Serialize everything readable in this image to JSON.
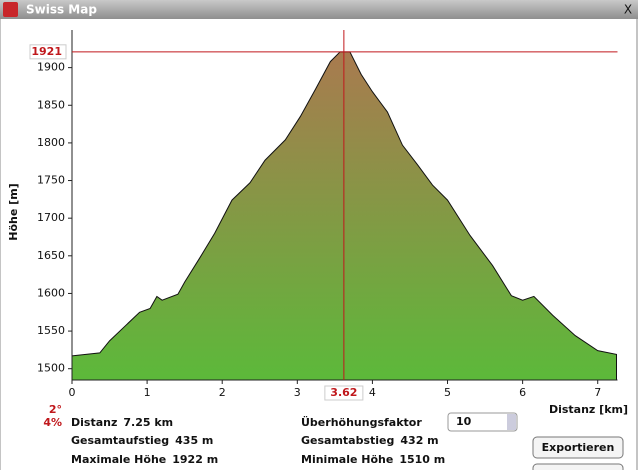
{
  "window": {
    "title": "Swiss Map",
    "close": "X"
  },
  "chart_data": {
    "type": "area",
    "y_label": "Höhe [m]",
    "x_label": "Distanz [km]",
    "x": [
      0,
      0.37,
      0.5,
      0.7,
      0.9,
      1.04,
      1.13,
      1.2,
      1.41,
      1.5,
      1.7,
      1.9,
      2.13,
      2.37,
      2.57,
      2.84,
      3.04,
      3.24,
      3.44,
      3.57,
      3.7,
      3.85,
      4.0,
      4.2,
      4.4,
      4.6,
      4.8,
      5.0,
      5.3,
      5.6,
      5.85,
      6.0,
      6.15,
      6.4,
      6.7,
      7.0,
      7.25
    ],
    "values": [
      1517,
      1521,
      1537,
      1556,
      1575,
      1580,
      1596,
      1591,
      1599,
      1615,
      1647,
      1680,
      1724,
      1747,
      1777,
      1804,
      1835,
      1871,
      1908,
      1921,
      1921,
      1891,
      1868,
      1841,
      1797,
      1771,
      1744,
      1724,
      1677,
      1637,
      1597,
      1591,
      1596,
      1571,
      1544,
      1524,
      1519
    ],
    "fill_top": "#a97a4f",
    "fill_bottom": "#5cb93a",
    "stroke": "#111111",
    "xlim": [
      0,
      7.25
    ],
    "xticks": [
      0,
      1,
      2,
      3,
      4,
      5,
      6,
      7
    ],
    "ylim": [
      1485,
      1950
    ],
    "yticks": [
      1500,
      1550,
      1600,
      1650,
      1700,
      1750,
      1800,
      1850,
      1900
    ],
    "cursor": {
      "x": 3.62,
      "y": 1921,
      "angle": "2°",
      "grade": "4%",
      "color": "#c0181c"
    }
  },
  "info": {
    "left": [
      {
        "label": "Distanz",
        "value": "7.25 km"
      },
      {
        "label": "Gesamtaufstieg",
        "value": "435 m"
      },
      {
        "label": "Maximale Höhe",
        "value": "1922 m"
      }
    ],
    "right": [
      {
        "label": "Überhöhungsfaktor",
        "value": "10"
      },
      {
        "label": "Gesamtabstieg",
        "value": "432 m"
      },
      {
        "label": "Minimale Höhe",
        "value": "1510 m"
      }
    ]
  },
  "buttons": [
    "Exportieren"
  ]
}
